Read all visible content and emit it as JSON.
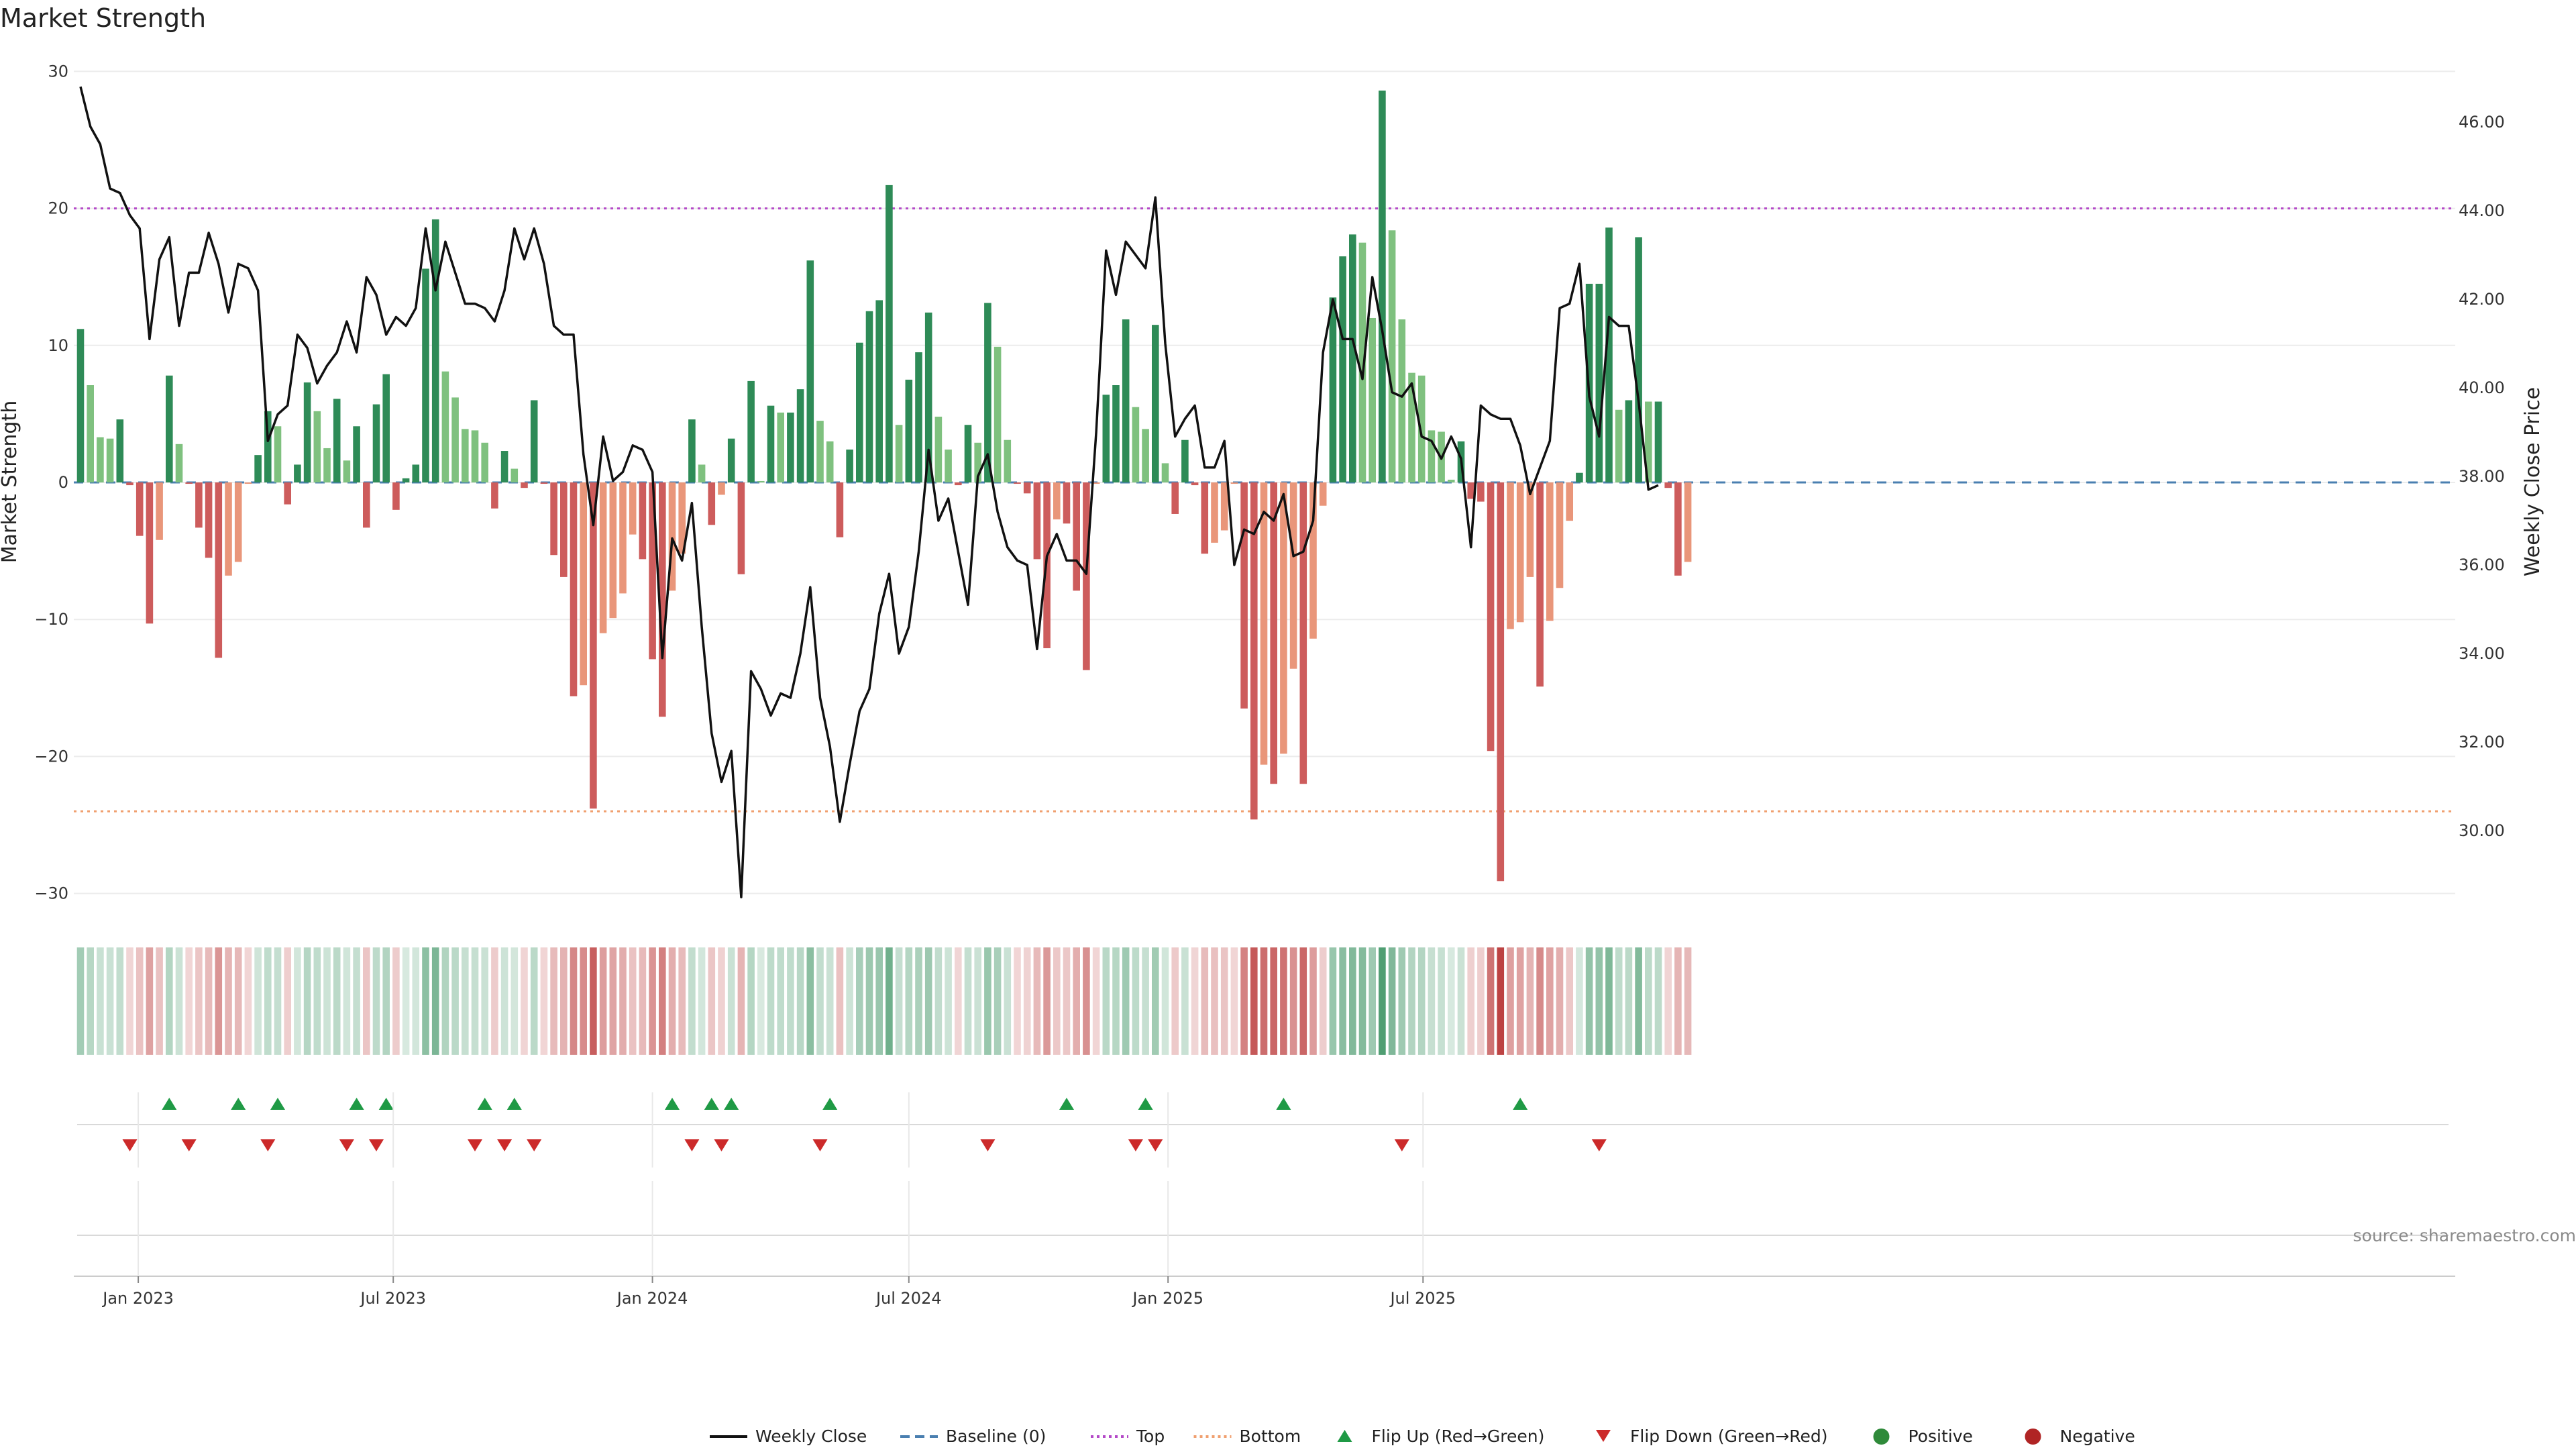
{
  "title": "Market Strength",
  "source": "source: sharemaestro.com",
  "y_left_label": "Market Strength",
  "y_right_label": "Weekly Close Price",
  "y_left_ticks": [
    "30",
    "20",
    "10",
    "0",
    "−10",
    "−20",
    "−30"
  ],
  "y_right_ticks": [
    "46.00",
    "44.00",
    "42.00",
    "40.00",
    "38.00",
    "36.00",
    "34.00",
    "32.00",
    "30.00"
  ],
  "x_ticks": [
    "Jan 2023",
    "Jul 2023",
    "Jan 2024",
    "Jul 2024",
    "Jan 2025",
    "Jul 2025"
  ],
  "legend": [
    {
      "label": "Weekly Close",
      "kind": "line",
      "color": "#111111"
    },
    {
      "label": "Baseline (0)",
      "kind": "dash",
      "color": "#4a7fb0"
    },
    {
      "label": "Top",
      "kind": "dot",
      "color": "#b44ac8"
    },
    {
      "label": "Bottom",
      "kind": "dot",
      "color": "#f0a070"
    },
    {
      "label": "Flip Up (Red→Green)",
      "kind": "tri-up",
      "color": "#1f9a45"
    },
    {
      "label": "Flip Down (Green→Red)",
      "kind": "tri-down",
      "color": "#cc2a2a"
    },
    {
      "label": "Positive",
      "kind": "circle",
      "color": "#2f8a3a"
    },
    {
      "label": "Negative",
      "kind": "circle",
      "color": "#b02424"
    }
  ],
  "chart_data": {
    "type": "bar",
    "title": "Market Strength",
    "x_start": "2022-11-21",
    "x_step_days": 7,
    "ylim_left": [
      -31,
      30
    ],
    "ylim_right": [
      28.5,
      47.0
    ],
    "reference_lines": {
      "top": 20,
      "bottom": -24,
      "baseline": 0
    },
    "colors": {
      "pos_strong": "#2e8b57",
      "pos_weak": "#7fc17f",
      "neg_strong": "#cd5c5c",
      "neg_weak": "#e9967a"
    },
    "strength": [
      11.2,
      7.1,
      3.3,
      3.2,
      4.6,
      -0.2,
      -3.9,
      -10.3,
      -4.2,
      7.8,
      2.8,
      -0.1,
      -3.3,
      -5.5,
      -12.8,
      -6.8,
      -5.8,
      -0.1,
      2.0,
      5.2,
      4.1,
      -1.6,
      1.3,
      7.3,
      5.2,
      2.5,
      6.1,
      1.6,
      4.1,
      -3.3,
      5.7,
      7.9,
      -2.0,
      0.3,
      1.3,
      15.6,
      19.2,
      8.1,
      6.2,
      3.9,
      3.8,
      2.9,
      -1.9,
      2.3,
      1.0,
      -0.4,
      6.0,
      -0.1,
      -5.3,
      -6.9,
      -15.6,
      -14.8,
      -23.8,
      -11.0,
      -9.9,
      -8.1,
      -3.8,
      -5.6,
      -12.9,
      -17.1,
      -7.9,
      -5.2,
      4.6,
      1.3,
      -3.1,
      -0.9,
      3.2,
      -6.7,
      7.4,
      0.1,
      5.6,
      5.1,
      5.1,
      6.8,
      16.2,
      4.5,
      3.0,
      -4.0,
      2.4,
      10.2,
      12.5,
      13.3,
      21.7,
      4.2,
      7.5,
      9.5,
      12.4,
      4.8,
      2.4,
      -0.2,
      4.2,
      2.9,
      13.1,
      9.9,
      3.1,
      -0.1,
      -0.8,
      -5.6,
      -12.1,
      -2.7,
      -3.0,
      -7.9,
      -13.7,
      -0.1,
      6.4,
      7.1,
      11.9,
      5.5,
      3.9,
      11.5,
      1.4,
      -2.3,
      3.1,
      -0.2,
      -5.2,
      -4.4,
      -3.5,
      -0.1,
      -16.5,
      -24.6,
      -20.6,
      -22.0,
      -19.8,
      -13.6,
      -22.0,
      -11.4,
      -1.7,
      13.5,
      16.5,
      18.1,
      17.5,
      12.0,
      28.6,
      18.4,
      11.9,
      8.0,
      7.8,
      3.8,
      3.7,
      0.2,
      3.0,
      -1.2,
      -1.4,
      -19.6,
      -29.1,
      -10.7,
      -10.2,
      -6.9,
      -14.9,
      -10.1,
      -7.7,
      -2.8,
      0.7,
      14.5,
      14.5,
      18.6,
      5.3,
      6.0,
      17.9,
      5.9,
      5.9,
      -0.4,
      -6.8,
      -5.8
    ],
    "close": [
      46.8,
      45.9,
      45.5,
      44.5,
      44.4,
      43.9,
      43.6,
      41.1,
      42.9,
      43.4,
      41.4,
      42.6,
      42.6,
      43.5,
      42.8,
      41.7,
      42.8,
      42.7,
      42.2,
      38.8,
      39.4,
      39.6,
      41.2,
      40.9,
      40.1,
      40.5,
      40.8,
      41.5,
      40.8,
      42.5,
      42.1,
      41.2,
      41.6,
      41.4,
      41.8,
      43.6,
      42.2,
      43.3,
      42.6,
      41.9,
      41.9,
      41.8,
      41.5,
      42.2,
      43.6,
      42.9,
      43.6,
      42.8,
      41.4,
      41.2,
      41.2,
      38.5,
      36.9,
      38.9,
      37.9,
      38.1,
      38.7,
      38.6,
      38.1,
      33.9,
      36.6,
      36.1,
      37.4,
      34.6,
      32.2,
      31.1,
      31.8,
      28.5,
      33.6,
      33.2,
      32.6,
      33.1,
      33.0,
      34.0,
      35.5,
      33.0,
      31.9,
      30.2,
      31.5,
      32.7,
      33.2,
      34.9,
      35.8,
      34.0,
      34.6,
      36.3,
      38.6,
      37.0,
      37.5,
      36.3,
      35.1,
      38.0,
      38.5,
      37.2,
      36.4,
      36.1,
      36.0,
      34.1,
      36.2,
      36.7,
      36.1,
      36.1,
      35.8,
      39.0,
      43.1,
      42.1,
      43.3,
      43.0,
      42.7,
      44.3,
      41.0,
      38.9,
      39.3,
      39.6,
      38.2,
      38.2,
      38.8,
      36.0,
      36.8,
      36.7,
      37.2,
      37.0,
      37.6,
      36.2,
      36.3,
      37.0,
      40.8,
      42.0,
      41.1,
      41.1,
      40.2,
      42.5,
      41.3,
      39.9,
      39.8,
      40.1,
      38.9,
      38.8,
      38.4,
      38.9,
      38.4,
      36.4,
      39.6,
      39.4,
      39.3,
      39.3,
      38.7,
      37.6,
      38.2,
      38.8,
      41.8,
      41.9,
      42.8,
      39.8,
      38.9,
      41.6,
      41.4,
      41.4,
      39.7,
      37.7,
      37.8
    ],
    "flip_up_idx": [
      9,
      16,
      20,
      28,
      31,
      41,
      44,
      60,
      64,
      66,
      76,
      100,
      108,
      122,
      146
    ],
    "flip_down_idx": [
      5,
      11,
      19,
      27,
      30,
      40,
      43,
      46,
      62,
      65,
      75,
      92,
      107,
      109,
      134,
      154
    ],
    "xlabel": "",
    "ylabel": "Market Strength",
    "ylabel_right": "Weekly Close Price"
  }
}
